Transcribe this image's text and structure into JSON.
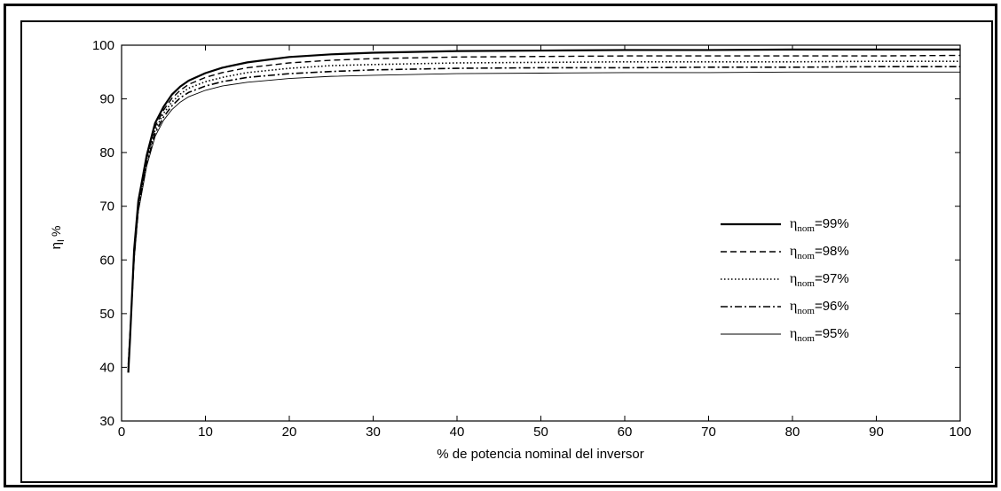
{
  "chart_data": {
    "type": "line",
    "title": "",
    "xlabel": "% de potencia nominal del inversor",
    "ylabel": "η",
    "ylabel_sub": "I",
    "ylabel_unit": "%",
    "xlim": [
      0,
      100
    ],
    "ylim": [
      30,
      100
    ],
    "x_ticks": [
      "0",
      "10",
      "20",
      "30",
      "40",
      "50",
      "60",
      "70",
      "80",
      "90",
      "100"
    ],
    "y_ticks": [
      "30",
      "40",
      "50",
      "60",
      "70",
      "80",
      "90",
      "100"
    ],
    "grid": false,
    "legend_position": "center-right",
    "x": [
      0.8,
      1,
      1.5,
      2,
      3,
      4,
      5,
      6,
      7,
      8,
      10,
      12,
      15,
      20,
      25,
      30,
      40,
      50,
      60,
      70,
      80,
      90,
      100
    ],
    "series": [
      {
        "name": "η",
        "name_sub": "nom",
        "name_suffix": "=99%",
        "style": "solid-thick",
        "values": [
          39,
          45,
          62,
          71,
          79.5,
          85.5,
          88.5,
          90.8,
          92.3,
          93.4,
          94.8,
          95.8,
          96.8,
          97.8,
          98.3,
          98.6,
          98.9,
          99.0,
          99.1,
          99.1,
          99.2,
          99.2,
          99.2
        ]
      },
      {
        "name": "η",
        "name_sub": "nom",
        "name_suffix": "=98%",
        "style": "dashed",
        "values": [
          39.5,
          45,
          61.5,
          70.5,
          79,
          84.8,
          87.9,
          90.1,
          91.6,
          92.7,
          94.0,
          94.9,
          95.8,
          96.7,
          97.2,
          97.5,
          97.8,
          97.9,
          98.0,
          98.0,
          98.0,
          98.0,
          98.1
        ]
      },
      {
        "name": "η",
        "name_sub": "nom",
        "name_suffix": "=97%",
        "style": "dotted",
        "values": [
          40,
          45.5,
          61,
          70,
          78.5,
          84.2,
          87.3,
          89.4,
          90.9,
          92.0,
          93.2,
          94.0,
          94.9,
          95.7,
          96.2,
          96.4,
          96.7,
          96.8,
          96.9,
          96.9,
          96.9,
          97.0,
          97.0
        ]
      },
      {
        "name": "η",
        "name_sub": "nom",
        "name_suffix": "=96%",
        "style": "dash-dot",
        "values": [
          40.5,
          46,
          60.5,
          69.5,
          78,
          83.6,
          86.6,
          88.7,
          90.2,
          91.2,
          92.4,
          93.2,
          94.0,
          94.7,
          95.1,
          95.4,
          95.7,
          95.8,
          95.8,
          95.9,
          95.9,
          96.0,
          96.0
        ]
      },
      {
        "name": "η",
        "name_sub": "nom",
        "name_suffix": "=95%",
        "style": "solid-thin",
        "values": [
          41,
          46.5,
          60,
          69,
          77.5,
          83.0,
          86.0,
          88.0,
          89.4,
          90.4,
          91.6,
          92.4,
          93.1,
          93.8,
          94.2,
          94.4,
          94.7,
          94.8,
          94.9,
          94.9,
          95.0,
          95.0,
          95.0
        ]
      }
    ]
  }
}
